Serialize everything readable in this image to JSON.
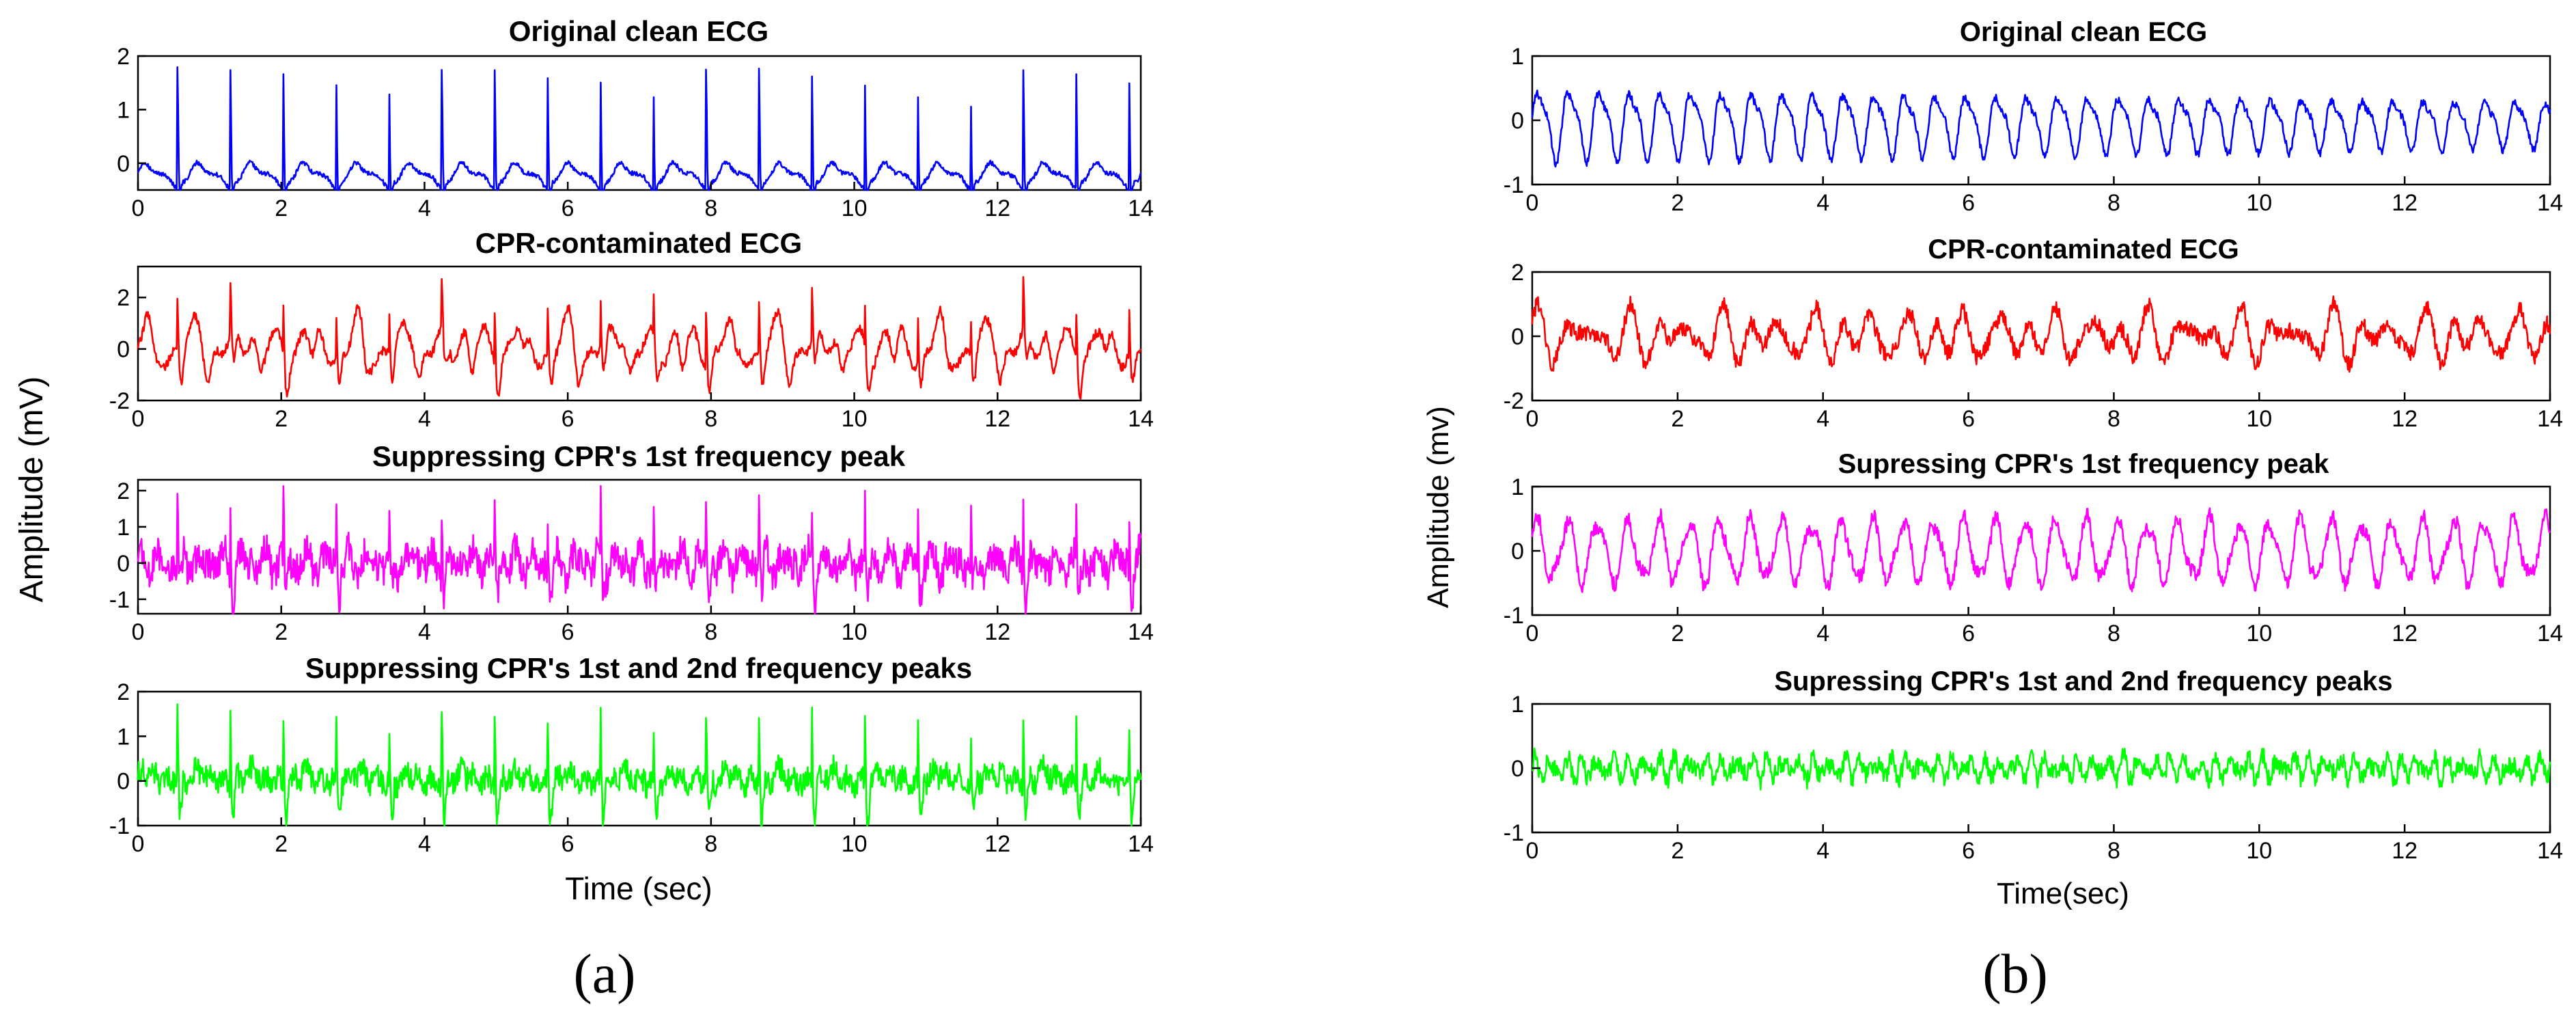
{
  "chart_data": [
    {
      "id": "a",
      "type": "line",
      "caption": "(a)",
      "ylabel": "Amplitude (mV)",
      "xlabel": "Time (sec)",
      "panels": [
        {
          "title": "Original clean ECG",
          "color": "#0000ff",
          "signal": "clean_ecg",
          "xlim": [
            0,
            14
          ],
          "ylim": [
            -0.5,
            2
          ],
          "xticks": [
            0,
            2,
            4,
            6,
            8,
            10,
            12,
            14
          ],
          "yticks": [
            0,
            1,
            2
          ],
          "x_tick_labels": [
            "0",
            "2",
            "4",
            "6",
            "8",
            "10",
            "12",
            "14"
          ],
          "y_tick_labels": [
            "0",
            "1",
            "2"
          ]
        },
        {
          "title": "CPR-contaminated ECG",
          "color": "#ff0000",
          "signal": "cpr_contaminated",
          "xlim": [
            0,
            14
          ],
          "ylim": [
            -2,
            3.2
          ],
          "xticks": [
            0,
            2,
            4,
            6,
            8,
            10,
            12,
            14
          ],
          "yticks": [
            -2,
            0,
            2
          ],
          "x_tick_labels": [
            "0",
            "2",
            "4",
            "6",
            "8",
            "10",
            "12",
            "14"
          ],
          "y_tick_labels": [
            "-2",
            "0",
            "2"
          ]
        },
        {
          "title": "Suppressing CPR's 1st frequency peak",
          "color": "#ff00ff",
          "signal": "suppressed_1st_peak",
          "xlim": [
            0,
            14
          ],
          "ylim": [
            -1.4,
            2.3
          ],
          "xticks": [
            0,
            2,
            4,
            6,
            8,
            10,
            12,
            14
          ],
          "yticks": [
            -1,
            0,
            1,
            2
          ],
          "x_tick_labels": [
            "0",
            "2",
            "4",
            "6",
            "8",
            "10",
            "12",
            "14"
          ],
          "y_tick_labels": [
            "-1",
            "0",
            "1",
            "2"
          ]
        },
        {
          "title": "Suppressing CPR's 1st and 2nd frequency peaks",
          "color": "#00ff00",
          "signal": "suppressed_1st_2nd_peaks",
          "xlim": [
            0,
            14
          ],
          "ylim": [
            -1,
            2
          ],
          "xticks": [
            0,
            2,
            4,
            6,
            8,
            10,
            12,
            14
          ],
          "yticks": [
            -1,
            0,
            1,
            2
          ],
          "x_tick_labels": [
            "0",
            "2",
            "4",
            "6",
            "8",
            "10",
            "12",
            "14"
          ],
          "y_tick_labels": [
            "-1",
            "0",
            "1",
            "2"
          ]
        }
      ]
    },
    {
      "id": "b",
      "type": "line",
      "caption": "(b)",
      "ylabel": "Amplitude (mv)",
      "xlabel": "Time(sec)",
      "panels": [
        {
          "title": "Original clean ECG",
          "color": "#0000ff",
          "signal": "clean_ecg",
          "xlim": [
            0,
            14
          ],
          "ylim": [
            -1,
            1
          ],
          "xticks": [
            0,
            2,
            4,
            6,
            8,
            10,
            12,
            14
          ],
          "yticks": [
            -1,
            0,
            1
          ],
          "x_tick_labels": [
            "0",
            "2",
            "4",
            "6",
            "8",
            "10",
            "12",
            "14"
          ],
          "y_tick_labels": [
            "-1",
            "0",
            "1"
          ]
        },
        {
          "title": "CPR-contaminated ECG",
          "color": "#ff0000",
          "signal": "cpr_contaminated",
          "xlim": [
            0,
            14
          ],
          "ylim": [
            -2,
            2
          ],
          "xticks": [
            0,
            2,
            4,
            6,
            8,
            10,
            12,
            14
          ],
          "yticks": [
            -2,
            0,
            2
          ],
          "x_tick_labels": [
            "0",
            "2",
            "4",
            "6",
            "8",
            "10",
            "12",
            "14"
          ],
          "y_tick_labels": [
            "-2",
            "0",
            "2"
          ]
        },
        {
          "title": "Supressing CPR's 1st frequency peak",
          "color": "#ff00ff",
          "signal": "suppressed_1st_peak",
          "xlim": [
            0,
            14
          ],
          "ylim": [
            -1,
            1
          ],
          "xticks": [
            0,
            2,
            4,
            6,
            8,
            10,
            12,
            14
          ],
          "yticks": [
            -1,
            0,
            1
          ],
          "x_tick_labels": [
            "0",
            "2",
            "4",
            "6",
            "8",
            "10",
            "12",
            "14"
          ],
          "y_tick_labels": [
            "-1",
            "0",
            "1"
          ]
        },
        {
          "title": "Supressing CPR's 1st and 2nd frequency peaks",
          "color": "#00ff00",
          "signal": "suppressed_1st_2nd_peaks",
          "xlim": [
            0,
            14
          ],
          "ylim": [
            -1,
            1
          ],
          "xticks": [
            0,
            2,
            4,
            6,
            8,
            10,
            12,
            14
          ],
          "yticks": [
            -1,
            0,
            1
          ],
          "x_tick_labels": [
            "0",
            "2",
            "4",
            "6",
            "8",
            "10",
            "12",
            "14"
          ],
          "y_tick_labels": [
            "-1",
            "0",
            "1"
          ]
        }
      ]
    }
  ]
}
